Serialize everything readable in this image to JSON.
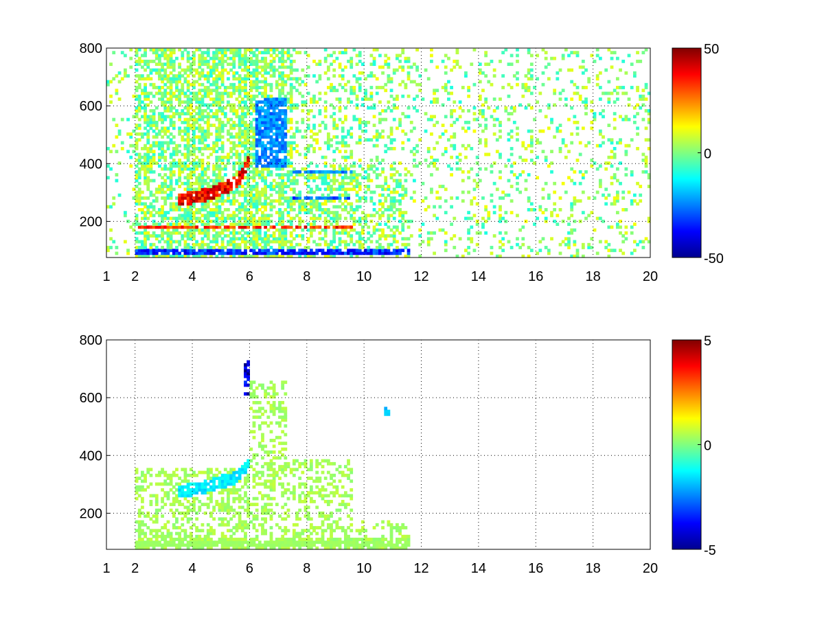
{
  "chart_data": [
    {
      "type": "heatmap",
      "title": "",
      "xlabel": "",
      "ylabel": "",
      "xlim": [
        1,
        20
      ],
      "ylim": [
        75,
        800
      ],
      "x_ticks": [
        "1",
        "2",
        "4",
        "6",
        "8",
        "10",
        "12",
        "14",
        "16",
        "18",
        "20"
      ],
      "x_tick_values": [
        1,
        2,
        4,
        6,
        8,
        10,
        12,
        14,
        16,
        18,
        20
      ],
      "y_ticks": [
        "200",
        "400",
        "600",
        "800"
      ],
      "y_tick_values": [
        200,
        400,
        600,
        800
      ],
      "grid": true,
      "grid_style": "dotted",
      "colormap": "jet",
      "clim": [
        -50,
        50
      ],
      "colorbar_labels": [
        "50",
        "0",
        "-50"
      ],
      "colorbar_values": [
        50,
        0,
        -50
      ],
      "features": [
        {
          "name": "low-frequency band",
          "x": [
            2,
            11.6
          ],
          "y": [
            80,
            100
          ],
          "value": -35
        },
        {
          "name": "horizontal band",
          "x": [
            2,
            9.5
          ],
          "y": [
            175,
            185
          ],
          "value": 35
        },
        {
          "name": "horizontal band",
          "x": [
            7.5,
            9.5
          ],
          "y": [
            270,
            285
          ],
          "value": -30
        },
        {
          "name": "horizontal band",
          "x": [
            7.5,
            9.5
          ],
          "y": [
            360,
            375
          ],
          "value": -25
        },
        {
          "name": "curved ridge",
          "x": [
            3.5,
            4.5,
            5.5,
            5.9
          ],
          "y": [
            270,
            290,
            330,
            400
          ],
          "value": 40
        },
        {
          "name": "negative patch",
          "x": [
            6.2,
            7.2
          ],
          "y": [
            380,
            620
          ],
          "value": -25
        }
      ]
    },
    {
      "type": "heatmap",
      "title": "",
      "xlabel": "",
      "ylabel": "",
      "xlim": [
        1,
        20
      ],
      "ylim": [
        75,
        800
      ],
      "x_ticks": [
        "1",
        "2",
        "4",
        "6",
        "8",
        "10",
        "12",
        "14",
        "16",
        "18",
        "20"
      ],
      "x_tick_values": [
        1,
        2,
        4,
        6,
        8,
        10,
        12,
        14,
        16,
        18,
        20
      ],
      "y_ticks": [
        "200",
        "400",
        "600",
        "800"
      ],
      "y_tick_values": [
        200,
        400,
        600,
        800
      ],
      "grid": true,
      "grid_style": "dotted",
      "colormap": "jet",
      "clim": [
        -5,
        5
      ],
      "colorbar_labels": [
        "5",
        "0",
        "-5"
      ],
      "colorbar_values": [
        5,
        0,
        -5
      ],
      "features": [
        {
          "name": "low-frequency band",
          "x": [
            2,
            11.6
          ],
          "y": [
            80,
            100
          ],
          "value": 0.3
        },
        {
          "name": "ridge",
          "x": [
            3.5,
            4.5,
            5.5,
            5.9
          ],
          "y": [
            270,
            290,
            320,
            360
          ],
          "value": -1.5
        },
        {
          "name": "negative spot",
          "x": [
            5.8,
            5.9
          ],
          "y": [
            600,
            720
          ],
          "value": -4.5
        },
        {
          "name": "negative spot",
          "x": [
            10.7,
            10.8
          ],
          "y": [
            530,
            560
          ],
          "value": -2
        }
      ]
    }
  ]
}
